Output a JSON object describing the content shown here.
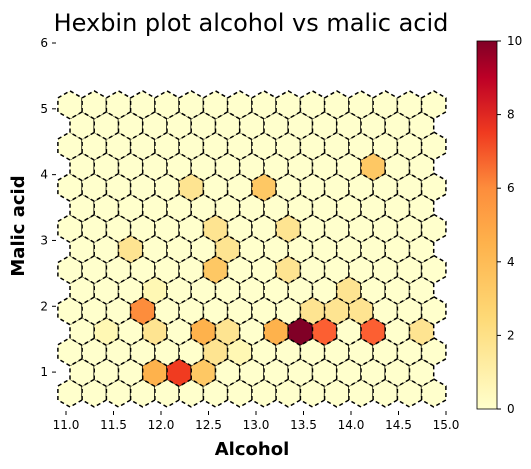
{
  "chart_data": {
    "type": "heatmap",
    "subtype": "hexbin",
    "title": "Hexbin plot alcohol vs malic acid",
    "xlabel": "Alcohol",
    "ylabel": "Malic acid",
    "xlim": [
      11.0,
      15.0
    ],
    "ylim": [
      0.5,
      6.0
    ],
    "xticks": [
      "11.0",
      "11.5",
      "12.0",
      "12.5",
      "13.0",
      "13.5",
      "14.0",
      "14.5",
      "15.0"
    ],
    "yticks": [
      "1",
      "2",
      "3",
      "4",
      "5",
      "6"
    ],
    "colorbar": {
      "min": 0,
      "max": 10,
      "ticks": [
        "0",
        "2",
        "4",
        "6",
        "8",
        "10"
      ],
      "colormap": "YlOrRd"
    },
    "hex_edge": "dashed black",
    "grid": false,
    "hexbin_grid": {
      "x_step": 0.25,
      "y_step": 0.4,
      "x_start": 11.0,
      "x_end": 15.0,
      "y_rows": 15
    },
    "nonzero_bins": [
      {
        "x": 11.75,
        "y": 1.9,
        "count": 5
      },
      {
        "x": 12.25,
        "y": 1.1,
        "count": 7
      },
      {
        "x": 13.5,
        "y": 1.7,
        "count": 10
      },
      {
        "x": 13.75,
        "y": 1.7,
        "count": 6
      },
      {
        "x": 14.25,
        "y": 1.7,
        "count": 6
      },
      {
        "x": 12.0,
        "y": 1.0,
        "count": 4
      },
      {
        "x": 12.4,
        "y": 1.5,
        "count": 4
      },
      {
        "x": 13.1,
        "y": 1.7,
        "count": 4
      },
      {
        "x": 13.4,
        "y": 1.7,
        "count": 4
      },
      {
        "x": 13.0,
        "y": 3.8,
        "count": 3
      },
      {
        "x": 14.2,
        "y": 4.1,
        "count": 3
      },
      {
        "x": 12.5,
        "y": 2.5,
        "count": 3
      },
      {
        "x": 12.1,
        "y": 1.1,
        "count": 3
      },
      {
        "x": 12.5,
        "y": 0.9,
        "count": 3
      },
      {
        "x": 12.5,
        "y": 1.3,
        "count": 2
      },
      {
        "x": 14.75,
        "y": 1.7,
        "count": 2
      },
      {
        "x": 12.0,
        "y": 1.7,
        "count": 2
      },
      {
        "x": 12.75,
        "y": 1.7,
        "count": 2
      },
      {
        "x": 11.75,
        "y": 2.9,
        "count": 2
      },
      {
        "x": 13.25,
        "y": 2.5,
        "count": 2
      },
      {
        "x": 13.9,
        "y": 2.1,
        "count": 2
      },
      {
        "x": 13.6,
        "y": 2.1,
        "count": 2
      },
      {
        "x": 14.1,
        "y": 2.1,
        "count": 2
      },
      {
        "x": 12.6,
        "y": 3.3,
        "count": 2
      },
      {
        "x": 12.25,
        "y": 3.8,
        "count": 2
      },
      {
        "x": 13.25,
        "y": 3.3,
        "count": 2
      },
      {
        "x": 12.75,
        "y": 3.0,
        "count": 2
      },
      {
        "x": 11.9,
        "y": 2.1,
        "count": 1
      },
      {
        "x": 11.5,
        "y": 1.7,
        "count": 1
      },
      {
        "x": 12.75,
        "y": 1.3,
        "count": 1
      }
    ]
  }
}
